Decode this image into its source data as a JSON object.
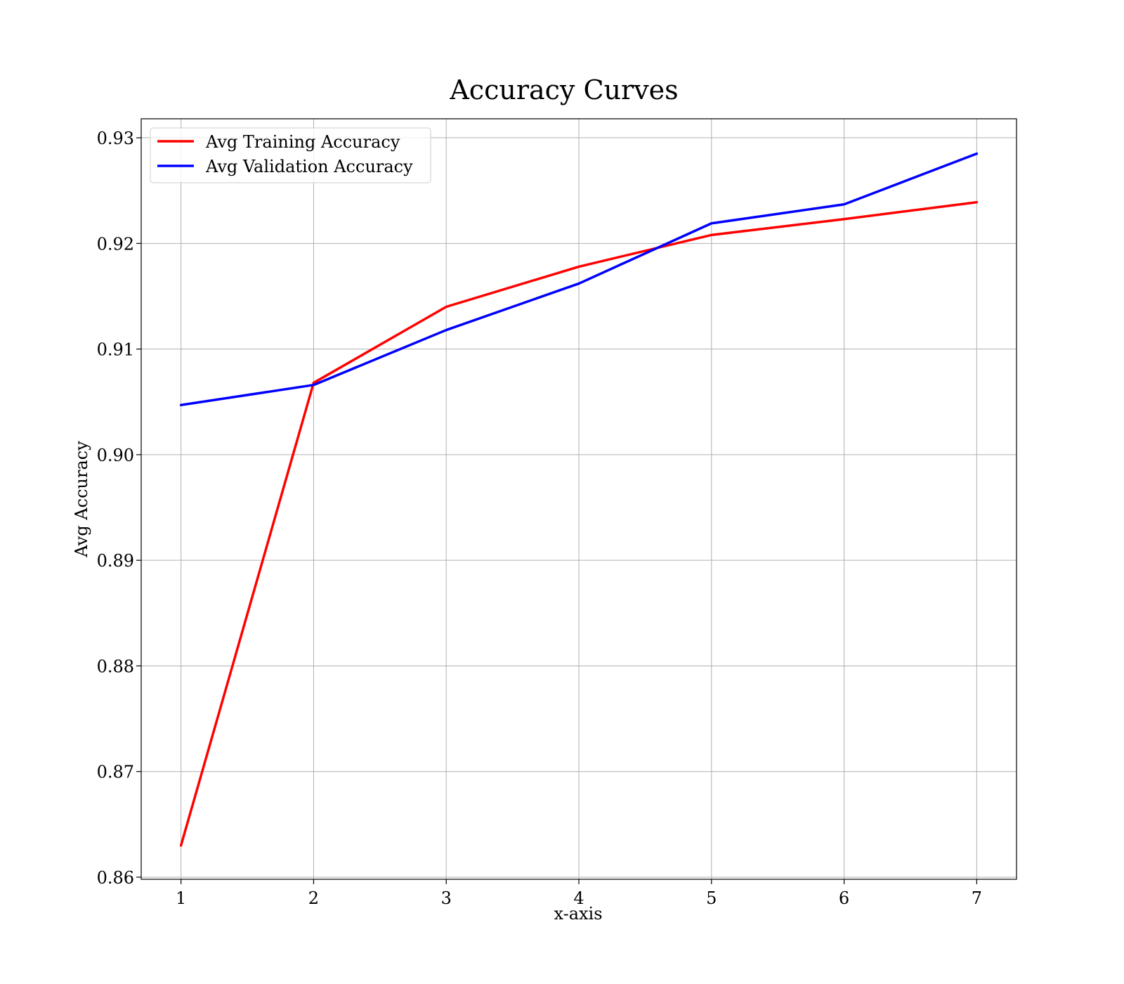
{
  "chart_data": {
    "type": "line",
    "title": "Accuracy Curves",
    "xlabel": "x-axis",
    "ylabel": "Avg Accuracy",
    "x": [
      1,
      2,
      3,
      4,
      5,
      6,
      7
    ],
    "xlim": [
      0.7,
      7.3
    ],
    "ylim": [
      0.8598,
      0.9318
    ],
    "xticks": [
      1,
      2,
      3,
      4,
      5,
      6,
      7
    ],
    "yticks": [
      0.86,
      0.87,
      0.88,
      0.89,
      0.9,
      0.91,
      0.92,
      0.93
    ],
    "ytick_labels": [
      "0.86",
      "0.87",
      "0.88",
      "0.89",
      "0.90",
      "0.91",
      "0.92",
      "0.93"
    ],
    "grid": true,
    "legend_position": "top-left",
    "series": [
      {
        "name": "Avg Training Accuracy",
        "color": "#ff0000",
        "values": [
          0.863,
          0.9068,
          0.914,
          0.9178,
          0.9208,
          0.9223,
          0.9239
        ]
      },
      {
        "name": "Avg Validation Accuracy",
        "color": "#0000ff",
        "values": [
          0.9047,
          0.9066,
          0.9118,
          0.9162,
          0.9219,
          0.9237,
          0.9285
        ]
      }
    ]
  }
}
